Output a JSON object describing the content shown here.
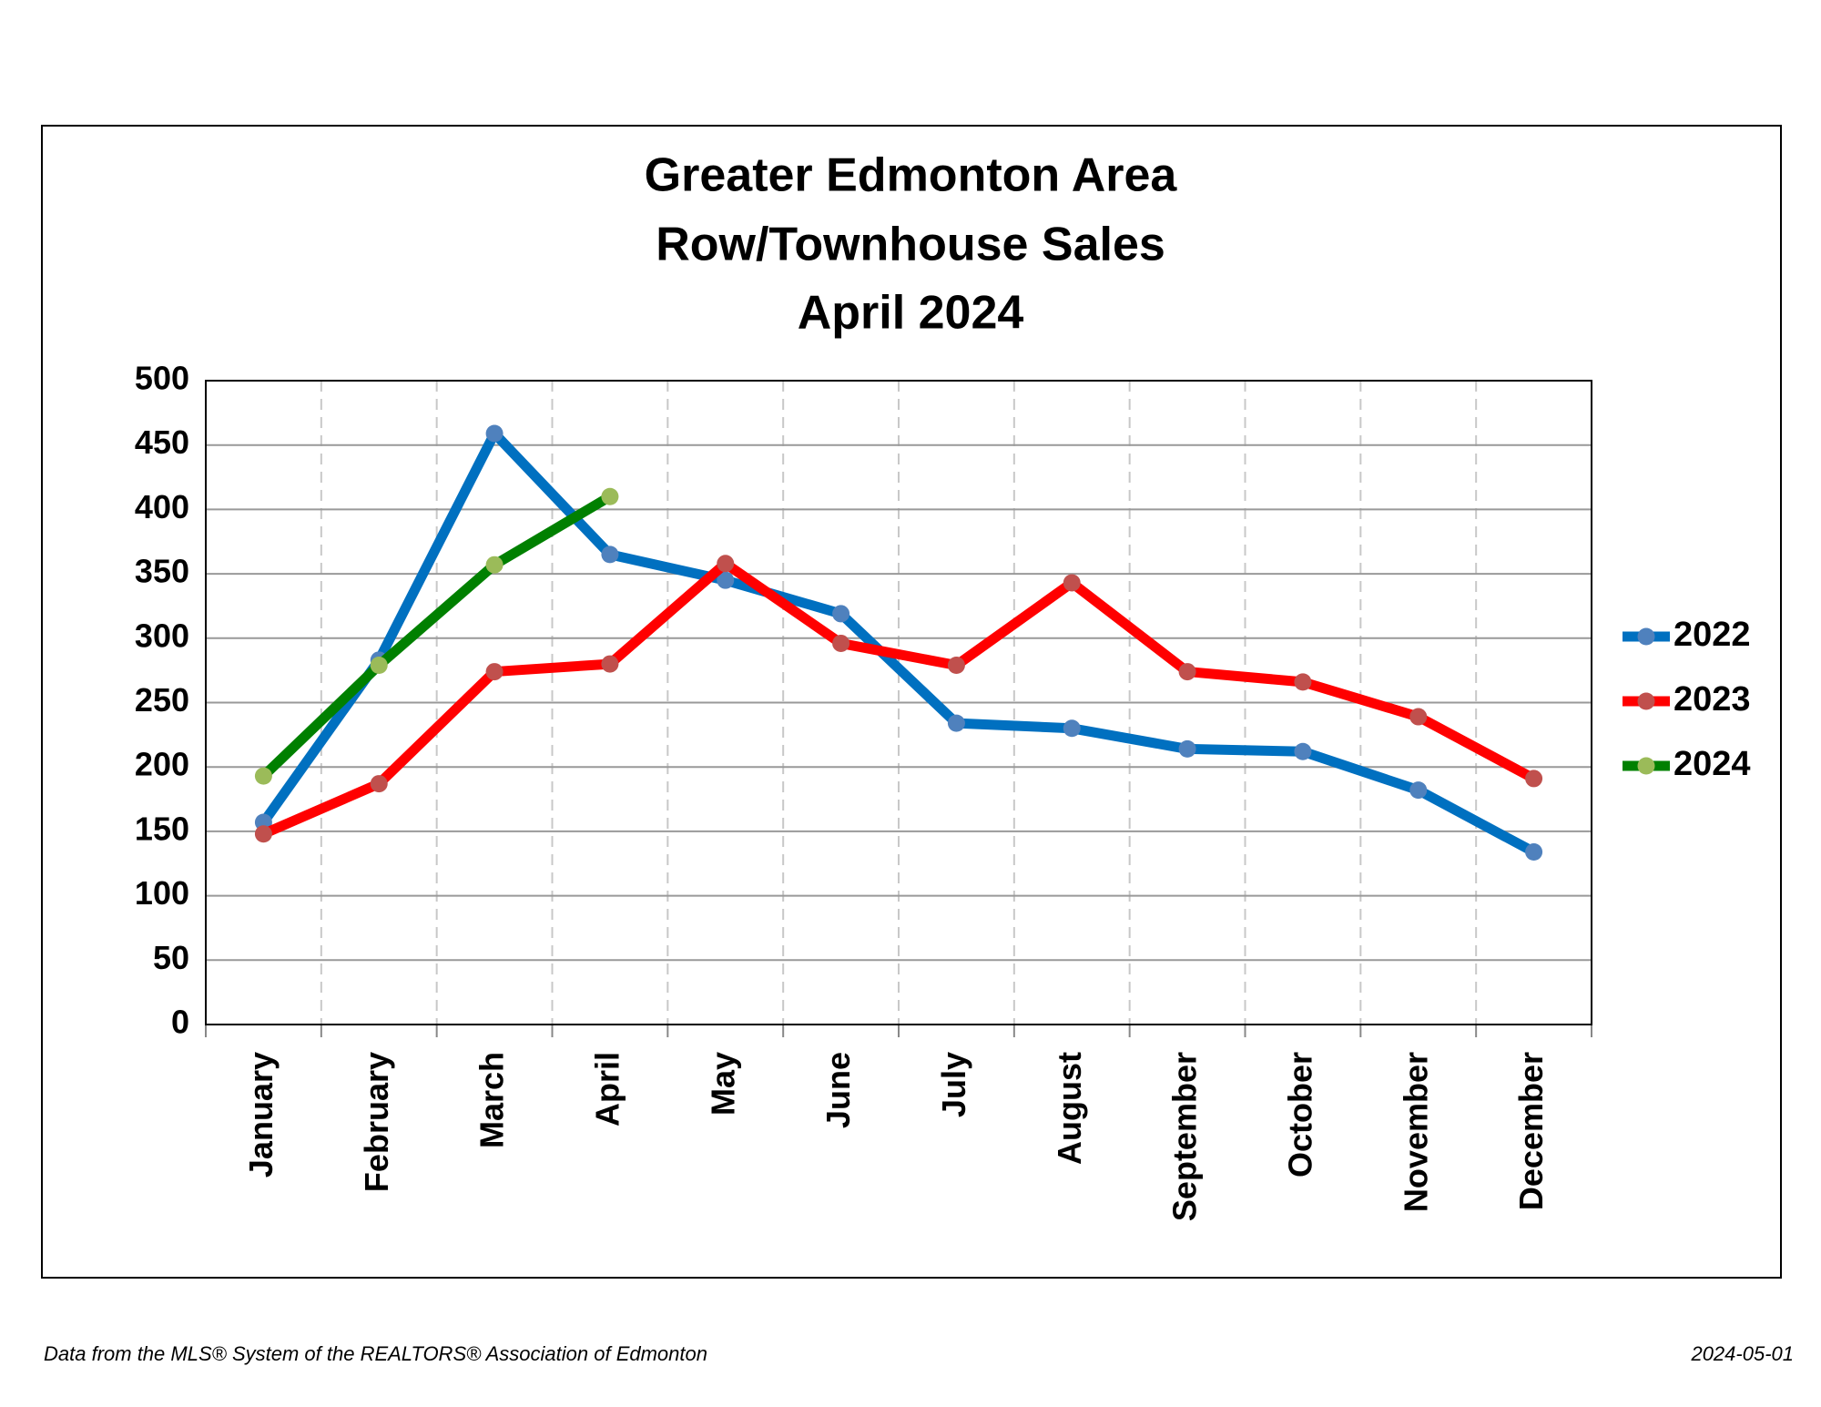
{
  "chart_data": {
    "type": "line",
    "title": [
      "Greater Edmonton Area",
      "Row/Townhouse Sales",
      "April 2024"
    ],
    "categories": [
      "January",
      "February",
      "March",
      "April",
      "May",
      "June",
      "July",
      "August",
      "September",
      "October",
      "November",
      "December"
    ],
    "series": [
      {
        "name": "2022",
        "color": "#0070c0",
        "marker_color": "#4f81bd",
        "values": [
          157,
          283,
          459,
          365,
          345,
          319,
          234,
          230,
          214,
          212,
          182,
          134
        ]
      },
      {
        "name": "2023",
        "color": "#ff0000",
        "marker_color": "#c0504d",
        "values": [
          148,
          187,
          274,
          280,
          358,
          296,
          279,
          343,
          274,
          266,
          239,
          191
        ]
      },
      {
        "name": "2024",
        "color": "#008000",
        "marker_color": "#9bbb59",
        "values": [
          193,
          279,
          357,
          410,
          null,
          null,
          null,
          null,
          null,
          null,
          null,
          null
        ]
      }
    ],
    "ylim": [
      0,
      500
    ],
    "yticks": [
      0,
      50,
      100,
      150,
      200,
      250,
      300,
      350,
      400,
      450,
      500
    ],
    "grid": true,
    "legend": "right",
    "source": "Data from the MLS® System of the REALTORS® Association of Edmonton",
    "date": "2024-05-01"
  }
}
